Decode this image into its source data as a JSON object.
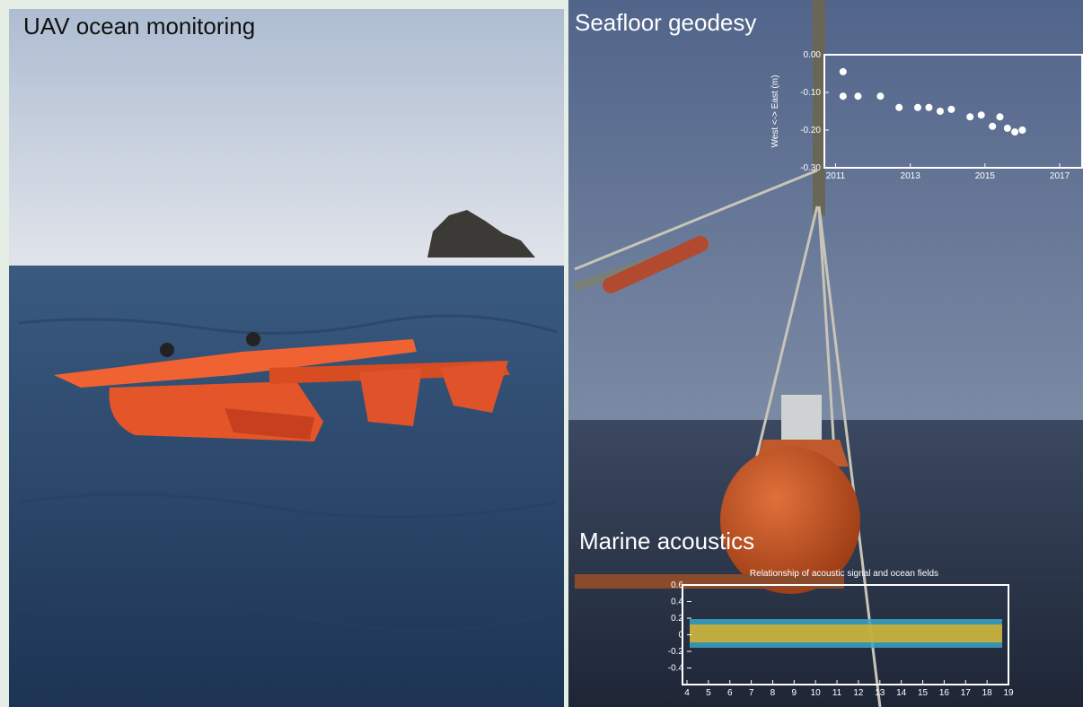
{
  "panels": [
    {
      "label": "UAV ocean monitoring"
    },
    {
      "label": "Seafloor geodesy"
    },
    {
      "label": "Marine acoustics"
    }
  ],
  "geodesy_chart": {
    "type": "scatter",
    "y_label": "West <-> East (m)",
    "x": [
      2011.2,
      2011.2,
      2011.6,
      2012.2,
      2012.7,
      2013.2,
      2013.5,
      2013.8,
      2014.1,
      2014.6,
      2014.9,
      2015.2,
      2015.4,
      2015.6,
      2015.8,
      2016.0
    ],
    "values": [
      -0.045,
      -0.11,
      -0.11,
      -0.11,
      -0.14,
      -0.14,
      -0.14,
      -0.15,
      -0.145,
      -0.165,
      -0.16,
      -0.19,
      -0.165,
      -0.195,
      -0.205,
      -0.2
    ],
    "xlim": [
      2010.7,
      2017.6
    ],
    "ylim": [
      -0.3,
      0
    ],
    "xticks": [
      2011,
      2013,
      2015,
      2017
    ],
    "yticks": [
      {
        "value": 0,
        "label": "0.00"
      },
      {
        "value": -0.1,
        "label": "-0.10"
      },
      {
        "value": -0.2,
        "label": "-0.20"
      },
      {
        "value": -0.3,
        "label": "-0.30"
      }
    ]
  },
  "acoustics_chart": {
    "type": "line",
    "title": "Relationship of acoustic signal and ocean fields",
    "xlim": [
      4,
      19
    ],
    "ylim": [
      -0.6,
      0.6
    ],
    "xticks": [
      4,
      5,
      6,
      7,
      8,
      9,
      10,
      11,
      12,
      13,
      14,
      15,
      16,
      17,
      18,
      19
    ],
    "yticks": [
      0.6,
      0.4,
      0.2,
      0,
      -0.2,
      -0.4
    ]
  }
}
